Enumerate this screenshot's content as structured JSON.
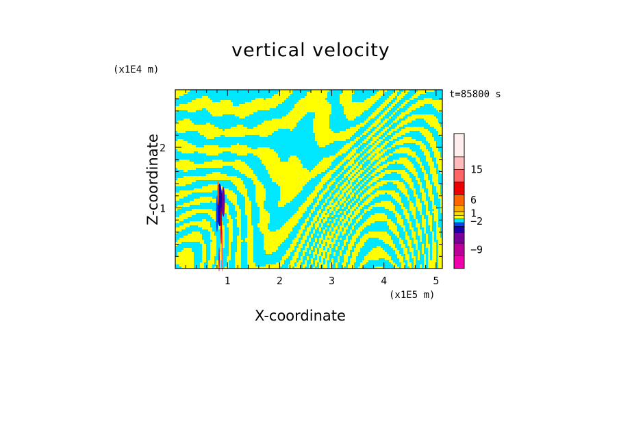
{
  "chart_data": {
    "type": "heatmap",
    "title": "vertical velocity",
    "xlabel": "X-coordinate",
    "ylabel": "Z-coordinate",
    "x_scale_label": "(x1E5 m)",
    "z_scale_label": "(x1E4 m)",
    "time_label": "t=85800 s",
    "xlim": [
      0,
      5.12
    ],
    "ylim": [
      0,
      2.95
    ],
    "x_ticks": [
      1,
      2,
      3,
      4,
      5
    ],
    "y_ticks": [
      1,
      2
    ],
    "colorbar": {
      "levels": [
        {
          "color": "#ee00aa"
        },
        {
          "color": "#bb0099"
        },
        {
          "color": "#770099"
        },
        {
          "color": "#1a00aa"
        },
        {
          "color": "#0044ff"
        },
        {
          "color": "#00e8ff"
        },
        {
          "color": "#ffff00"
        },
        {
          "color": "#ffdd00"
        },
        {
          "color": "#ffaa00"
        },
        {
          "color": "#ff6600"
        },
        {
          "color": "#ee0000"
        },
        {
          "color": "#ff6666"
        },
        {
          "color": "#ffbbbb"
        },
        {
          "color": "#ffeeee"
        }
      ],
      "labels": [
        {
          "text": "15",
          "level_boundary": 12
        },
        {
          "text": "6",
          "level_boundary": 9.5
        },
        {
          "text": "1",
          "level_boundary": 7.5
        },
        {
          "text": "−2",
          "level_boundary": 5.4
        },
        {
          "text": "−9",
          "level_boundary": 1.5
        }
      ]
    },
    "field_colors": {
      "positive": "#ffff00",
      "negative": "#00e8ff"
    }
  }
}
